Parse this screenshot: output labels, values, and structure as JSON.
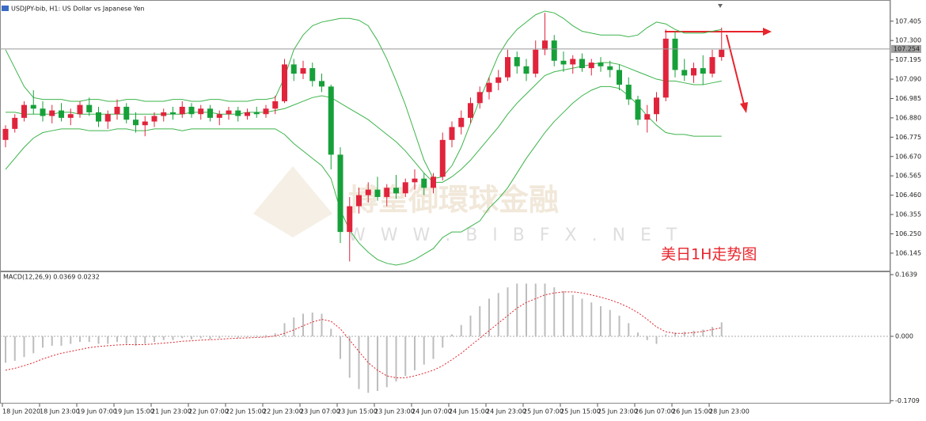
{
  "chart_data": [
    {
      "type": "candlestick",
      "title": "USDJPY-bib, H1:  US Dollar vs Japanese Yen",
      "annotation": "美日1H走势图",
      "watermark": [
        "博皇御環球金融",
        "W W W . B I B F X . N E T"
      ],
      "categories": [
        "18 Jun 2020",
        null,
        null,
        null,
        "18 Jun 23:00",
        null,
        null,
        null,
        "19 Jun 07:00",
        null,
        null,
        null,
        "19 Jun 15:00",
        null,
        null,
        null,
        "21 Jun 23:00",
        null,
        null,
        null,
        "22 Jun 07:00",
        null,
        null,
        null,
        "22 Jun 15:00",
        null,
        null,
        null,
        "22 Jun 23:00",
        null,
        null,
        null,
        "23 Jun 07:00",
        null,
        null,
        null,
        "23 Jun 15:00",
        null,
        null,
        null,
        "23 Jun 23:00",
        null,
        null,
        null,
        "24 Jun 07:00",
        null,
        null,
        null,
        "24 Jun 15:00",
        null,
        null,
        null,
        "24 Jun 23:00",
        null,
        null,
        null,
        "25 Jun 07:00",
        null,
        null,
        null,
        "25 Jun 15:00",
        null,
        null,
        null,
        "25 Jun 23:00",
        null,
        null,
        null,
        "26 Jun 07:00",
        null,
        null,
        null,
        "26 Jun 15:00",
        null,
        null,
        null,
        "28 Jun 23:00",
        null
      ],
      "open": [
        106.76,
        106.82,
        106.88,
        106.95,
        106.93,
        106.89,
        106.92,
        106.88,
        106.9,
        106.95,
        106.91,
        106.86,
        106.9,
        106.94,
        106.87,
        106.84,
        106.86,
        106.89,
        106.91,
        106.9,
        106.94,
        106.9,
        106.93,
        106.88,
        106.9,
        106.92,
        106.89,
        106.91,
        106.9,
        106.93,
        106.97,
        107.17,
        107.12,
        107.15,
        107.08,
        107.05,
        106.68,
        106.26,
        106.4,
        106.46,
        106.49,
        106.45,
        106.5,
        106.47,
        106.53,
        106.55,
        106.5,
        106.56,
        106.76,
        106.83,
        106.88,
        106.96,
        107.02,
        107.07,
        107.1,
        107.21,
        107.16,
        107.12,
        107.25,
        107.3,
        107.19,
        107.17,
        107.2,
        107.15,
        107.18,
        107.16,
        107.14,
        107.06,
        106.98,
        106.87,
        106.9,
        106.99,
        107.31,
        107.14,
        107.11,
        107.15,
        107.12,
        107.21
      ],
      "high": [
        106.84,
        106.9,
        106.97,
        107.03,
        106.97,
        106.95,
        106.96,
        106.93,
        106.97,
        106.99,
        106.94,
        106.92,
        106.98,
        106.96,
        106.91,
        106.89,
        106.91,
        106.93,
        106.94,
        106.97,
        106.96,
        106.95,
        106.95,
        106.92,
        106.94,
        106.94,
        106.93,
        106.94,
        106.95,
        107.0,
        107.2,
        107.2,
        107.19,
        107.18,
        107.12,
        107.06,
        106.72,
        106.45,
        106.5,
        106.53,
        106.56,
        106.52,
        106.57,
        106.55,
        106.6,
        106.58,
        106.58,
        106.8,
        106.86,
        106.92,
        106.99,
        107.05,
        107.1,
        107.14,
        107.25,
        107.24,
        107.2,
        107.3,
        107.45,
        107.33,
        107.24,
        107.22,
        107.23,
        107.2,
        107.21,
        107.19,
        107.17,
        107.1,
        107.0,
        106.95,
        107.02,
        107.36,
        107.35,
        107.2,
        107.18,
        107.22,
        107.25,
        107.37
      ],
      "low": [
        106.72,
        106.8,
        106.86,
        106.9,
        106.86,
        106.85,
        106.86,
        106.84,
        106.88,
        106.89,
        106.83,
        106.82,
        106.87,
        106.85,
        106.8,
        106.78,
        106.83,
        106.86,
        106.87,
        106.88,
        106.88,
        106.87,
        106.86,
        106.84,
        106.87,
        106.86,
        106.87,
        106.88,
        106.88,
        106.9,
        106.96,
        107.08,
        107.09,
        107.05,
        107.02,
        106.6,
        106.2,
        106.1,
        106.36,
        106.42,
        106.43,
        106.4,
        106.44,
        106.45,
        106.49,
        106.46,
        106.47,
        106.54,
        106.72,
        106.79,
        106.85,
        106.93,
        106.98,
        107.03,
        107.08,
        107.12,
        107.08,
        107.1,
        107.22,
        107.16,
        107.13,
        107.12,
        107.13,
        107.11,
        107.13,
        107.1,
        107.03,
        106.95,
        106.84,
        106.8,
        106.86,
        106.97,
        107.1,
        107.08,
        107.07,
        107.06,
        107.1,
        107.19
      ],
      "close": [
        106.82,
        106.88,
        106.95,
        106.93,
        106.89,
        106.92,
        106.88,
        106.9,
        106.95,
        106.91,
        106.86,
        106.9,
        106.94,
        106.87,
        106.84,
        106.86,
        106.89,
        106.91,
        106.9,
        106.94,
        106.9,
        106.93,
        106.88,
        106.9,
        106.92,
        106.89,
        106.91,
        106.9,
        106.93,
        106.97,
        107.17,
        107.12,
        107.15,
        107.08,
        107.05,
        106.68,
        106.26,
        106.4,
        106.46,
        106.49,
        106.45,
        106.5,
        106.47,
        106.53,
        106.55,
        106.5,
        106.56,
        106.76,
        106.83,
        106.88,
        106.96,
        107.02,
        107.07,
        107.1,
        107.21,
        107.16,
        107.12,
        107.25,
        107.3,
        107.19,
        107.17,
        107.2,
        107.15,
        107.18,
        107.16,
        107.14,
        107.06,
        106.98,
        106.87,
        106.9,
        106.99,
        107.31,
        107.14,
        107.11,
        107.15,
        107.12,
        107.21,
        107.25
      ],
      "bb_upper": [
        107.25,
        107.15,
        107.05,
        106.99,
        106.98,
        106.98,
        106.98,
        106.97,
        106.97,
        106.98,
        106.98,
        106.97,
        106.97,
        106.98,
        106.98,
        106.97,
        106.97,
        106.97,
        106.98,
        106.98,
        106.97,
        106.97,
        106.98,
        106.98,
        106.97,
        106.97,
        106.97,
        106.98,
        106.98,
        106.99,
        107.1,
        107.25,
        107.33,
        107.38,
        107.4,
        107.41,
        107.42,
        107.42,
        107.41,
        107.38,
        107.3,
        107.2,
        107.08,
        106.95,
        106.8,
        106.65,
        106.55,
        106.56,
        106.62,
        106.72,
        106.85,
        106.98,
        107.1,
        107.22,
        107.3,
        107.36,
        107.4,
        107.44,
        107.46,
        107.45,
        107.42,
        107.38,
        107.35,
        107.34,
        107.33,
        107.33,
        107.33,
        107.32,
        107.33,
        107.37,
        107.4,
        107.39,
        107.36,
        107.34,
        107.34,
        107.34,
        107.35,
        107.36
      ],
      "bb_middle": [
        106.91,
        106.91,
        106.9,
        106.9,
        106.9,
        106.9,
        106.91,
        106.91,
        106.9,
        106.9,
        106.9,
        106.9,
        106.9,
        106.9,
        106.9,
        106.9,
        106.9,
        106.9,
        106.9,
        106.9,
        106.91,
        106.91,
        106.91,
        106.9,
        106.9,
        106.9,
        106.91,
        106.91,
        106.91,
        106.92,
        106.93,
        106.95,
        106.97,
        106.99,
        107.0,
        106.99,
        106.96,
        106.93,
        106.9,
        106.87,
        106.83,
        106.79,
        106.75,
        106.7,
        106.64,
        106.58,
        106.53,
        106.53,
        106.56,
        106.6,
        106.65,
        106.71,
        106.77,
        106.83,
        106.9,
        106.96,
        107.01,
        107.06,
        107.11,
        107.13,
        107.14,
        107.15,
        107.16,
        107.17,
        107.18,
        107.18,
        107.17,
        107.15,
        107.13,
        107.11,
        107.09,
        107.08,
        107.08,
        107.07,
        107.06,
        107.06,
        107.07,
        107.08
      ],
      "bb_lower": [
        106.6,
        106.66,
        106.72,
        106.77,
        106.8,
        106.81,
        106.82,
        106.82,
        106.82,
        106.81,
        106.81,
        106.81,
        106.82,
        106.82,
        106.81,
        106.81,
        106.82,
        106.82,
        106.82,
        106.81,
        106.82,
        106.82,
        106.82,
        106.82,
        106.82,
        106.82,
        106.82,
        106.82,
        106.82,
        106.82,
        106.79,
        106.74,
        106.7,
        106.66,
        106.62,
        106.55,
        106.38,
        106.27,
        106.2,
        106.15,
        106.11,
        106.09,
        106.08,
        106.09,
        106.11,
        106.14,
        106.17,
        106.23,
        106.26,
        106.26,
        106.29,
        106.32,
        106.39,
        106.44,
        106.5,
        106.58,
        106.66,
        106.73,
        106.8,
        106.86,
        106.91,
        106.96,
        107.0,
        107.03,
        107.05,
        107.05,
        107.04,
        107.0,
        106.95,
        106.89,
        106.84,
        106.8,
        106.79,
        106.79,
        106.78,
        106.78,
        106.78,
        106.78
      ],
      "last_price": 107.254,
      "up_color": "#e0243c",
      "down_color": "#17a03a",
      "band_color": "#3cb44b",
      "ylim": [
        106.05,
        107.52
      ],
      "yticks": [
        107.405,
        {
          "value": 107.3,
          "label": "107.300"
        },
        107.195,
        {
          "value": 107.09,
          "label": "107.090"
        },
        106.985,
        {
          "value": 106.88,
          "label": "106.880"
        },
        106.775,
        {
          "value": 106.67,
          "label": "106.670"
        },
        106.565,
        {
          "value": 106.46,
          "label": "106.460"
        },
        106.355,
        {
          "value": 106.25,
          "label": "106.250"
        },
        106.145
      ]
    },
    {
      "type": "macd",
      "title": "MACD(12,26,9) 0.0369 0.0232",
      "histogram": [
        -0.07,
        -0.065,
        -0.055,
        -0.045,
        -0.03,
        -0.025,
        -0.025,
        -0.02,
        -0.015,
        -0.015,
        -0.02,
        -0.02,
        -0.015,
        -0.02,
        -0.025,
        -0.02,
        -0.015,
        -0.01,
        -0.01,
        -0.005,
        -0.008,
        -0.005,
        -0.008,
        -0.005,
        -0.002,
        -0.004,
        -0.002,
        0.002,
        0.003,
        0.008,
        0.035,
        0.05,
        0.06,
        0.063,
        0.06,
        0.02,
        -0.06,
        -0.11,
        -0.14,
        -0.15,
        -0.145,
        -0.135,
        -0.12,
        -0.105,
        -0.09,
        -0.075,
        -0.06,
        -0.03,
        0.005,
        0.03,
        0.055,
        0.08,
        0.1,
        0.115,
        0.13,
        0.14,
        0.14,
        0.14,
        0.14,
        0.13,
        0.12,
        0.11,
        0.1,
        0.09,
        0.08,
        0.07,
        0.055,
        0.035,
        0.01,
        -0.01,
        -0.02,
        0.005,
        0.01,
        0.012,
        0.015,
        0.018,
        0.025,
        0.037
      ],
      "signal": [
        -0.09,
        -0.085,
        -0.078,
        -0.07,
        -0.06,
        -0.052,
        -0.045,
        -0.04,
        -0.035,
        -0.03,
        -0.027,
        -0.025,
        -0.023,
        -0.022,
        -0.022,
        -0.022,
        -0.02,
        -0.018,
        -0.016,
        -0.013,
        -0.012,
        -0.01,
        -0.009,
        -0.008,
        -0.006,
        -0.005,
        -0.004,
        -0.003,
        -0.002,
        0.001,
        0.008,
        0.017,
        0.028,
        0.038,
        0.045,
        0.04,
        0.02,
        -0.01,
        -0.04,
        -0.07,
        -0.09,
        -0.105,
        -0.11,
        -0.11,
        -0.105,
        -0.098,
        -0.09,
        -0.078,
        -0.062,
        -0.045,
        -0.025,
        -0.005,
        0.015,
        0.035,
        0.055,
        0.075,
        0.09,
        0.1,
        0.11,
        0.115,
        0.118,
        0.118,
        0.115,
        0.11,
        0.104,
        0.097,
        0.088,
        0.077,
        0.063,
        0.045,
        0.025,
        0.012,
        0.008,
        0.008,
        0.01,
        0.013,
        0.018,
        0.023
      ],
      "hist_color": "#bdbdbd",
      "signal_color": "#e0242c",
      "ylim": [
        -0.1786,
        0.1723
      ],
      "yticks": [
        0.1639,
        {
          "value": 0,
          "label": "0.000"
        },
        -0.1709
      ]
    }
  ]
}
